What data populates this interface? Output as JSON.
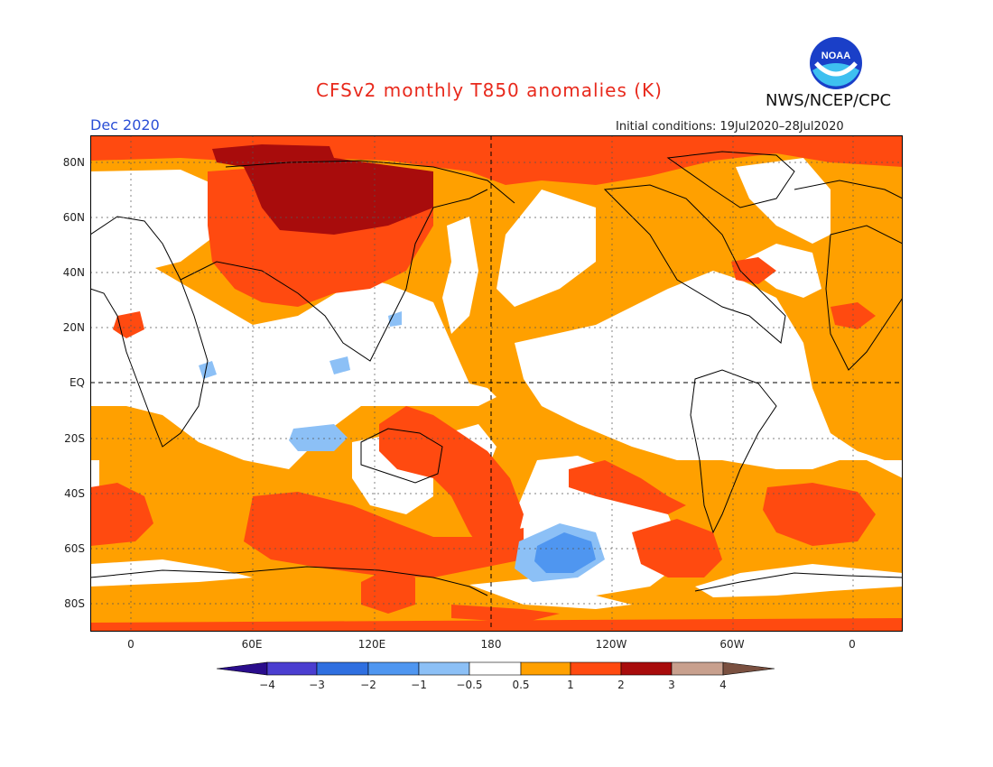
{
  "header": {
    "title": "CFSv2 monthly T850 anomalies (K)",
    "agency": "NWS/NCEP/CPC",
    "logo_text": "NOAA",
    "month": "Dec 2020",
    "initial_conditions": "Initial conditions: 19Jul2020–28Jul2020"
  },
  "axes": {
    "y_labels": [
      "80N",
      "60N",
      "40N",
      "20N",
      "EQ",
      "20S",
      "40S",
      "60S",
      "80S"
    ],
    "x_labels": [
      "0",
      "60E",
      "120E",
      "180",
      "120W",
      "60W",
      "0"
    ]
  },
  "colorbar": {
    "labels": [
      "−4",
      "−3",
      "−2",
      "−1",
      "−0.5",
      "0.5",
      "1",
      "2",
      "3",
      "4"
    ],
    "colors": [
      "#2a0d8c",
      "#4b3ed0",
      "#2f6fe0",
      "#4f96f0",
      "#8cc0f6",
      "#ffffff",
      "#ffa000",
      "#ff4a10",
      "#a80c0c",
      "#c8a08e",
      "#7a5040"
    ]
  },
  "map_colors": {
    "ocean_base": "#ffa000",
    "neutral": "#ffffff",
    "warm1": "#ffa000",
    "warm2": "#ff4a10",
    "warm3": "#a80c0c",
    "cool1": "#8cc0f6",
    "cool2": "#4f96f0"
  }
}
